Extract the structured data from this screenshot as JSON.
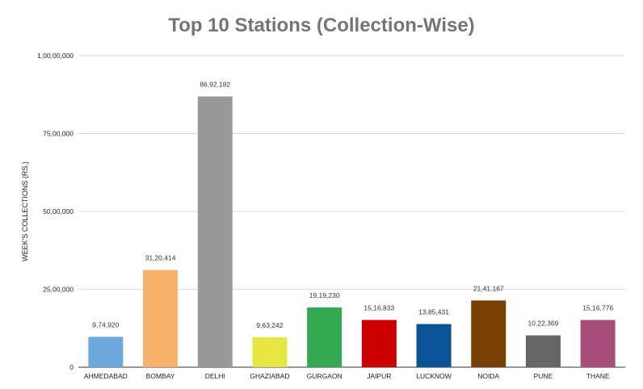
{
  "chart_data": {
    "type": "bar",
    "title": "Top 10 Stations (Collection-Wise)",
    "xlabel": "",
    "ylabel": "WEEK'S COLLECTIONS (RS.)",
    "ylim": [
      0,
      10000000
    ],
    "yticks": [
      0,
      2500000,
      5000000,
      7500000,
      10000000
    ],
    "ytick_labels": [
      "0",
      "25,00,000",
      "50,00,000",
      "75,00,000",
      "1,00,00,000"
    ],
    "grid": true,
    "legend": "none",
    "categories": [
      "AHMEDABAD",
      "BOMBAY",
      "DELHI",
      "GHAZIABAD",
      "GURGAON",
      "JAIPUR",
      "LUCKNOW",
      "NOIDA",
      "PUNE",
      "THANE"
    ],
    "values": [
      974920,
      3120414,
      8692182,
      963242,
      1919230,
      1516833,
      1385431,
      2141167,
      1022369,
      1516776
    ],
    "data_labels": [
      "9,74,920",
      "31,20,414",
      "86,92,182",
      "9,63,242",
      "19,19,230",
      "15,16,833",
      "13,85,431",
      "21,41,167",
      "10,22,369",
      "15,16,776"
    ],
    "colors": [
      "#6fa8dc",
      "#f6b26b",
      "#999999",
      "#e6e645",
      "#34a853",
      "#cc0000",
      "#0b5394",
      "#783f04",
      "#666666",
      "#a64d79"
    ]
  }
}
